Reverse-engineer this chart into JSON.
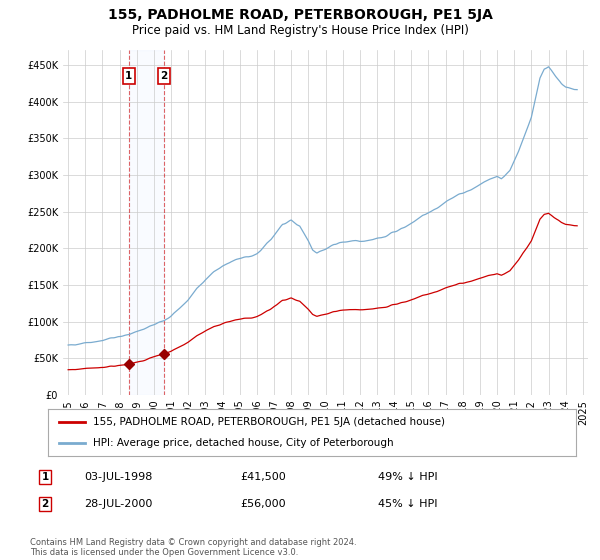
{
  "title": "155, PADHOLME ROAD, PETERBOROUGH, PE1 5JA",
  "subtitle": "Price paid vs. HM Land Registry's House Price Index (HPI)",
  "legend_line1": "155, PADHOLME ROAD, PETERBOROUGH, PE1 5JA (detached house)",
  "legend_line2": "HPI: Average price, detached house, City of Peterborough",
  "sale_points": [
    {
      "date_num": 1998.538,
      "price": 41500,
      "label": "1",
      "date_str": "03-JUL-1998",
      "pct": "49% ↓ HPI"
    },
    {
      "date_num": 2000.579,
      "price": 56000,
      "label": "2",
      "date_str": "28-JUL-2000",
      "pct": "45% ↓ HPI"
    }
  ],
  "annotations": [
    {
      "num": 1,
      "date": "03-JUL-1998",
      "price": "£41,500",
      "pct": "49% ↓ HPI"
    },
    {
      "num": 2,
      "date": "28-JUL-2000",
      "price": "£56,000",
      "pct": "45% ↓ HPI"
    }
  ],
  "footer": "Contains HM Land Registry data © Crown copyright and database right 2024.\nThis data is licensed under the Open Government Licence v3.0.",
  "red_color": "#cc0000",
  "blue_color": "#7aabcf",
  "marker_color": "#990000",
  "ylim": [
    0,
    470000
  ],
  "xlim": [
    1994.7,
    2025.3
  ],
  "background_color": "#ffffff",
  "grid_color": "#cccccc"
}
